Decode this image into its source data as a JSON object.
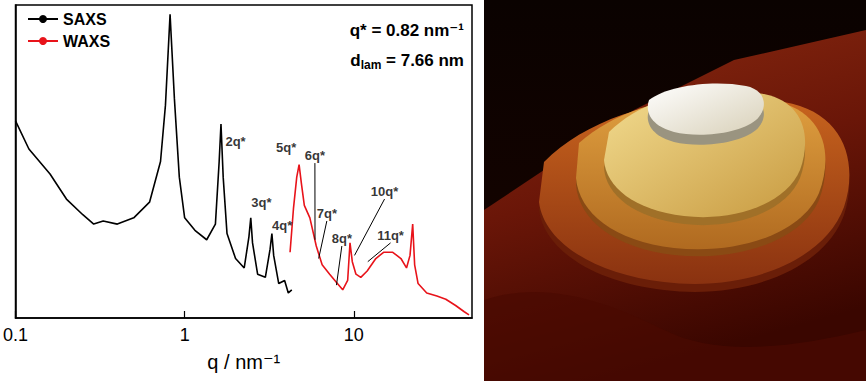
{
  "chart_data": {
    "type": "line",
    "x_label": "q / nm⁻¹",
    "log": "x",
    "xlim": [
      0.1,
      50
    ],
    "xticks": [
      0.1,
      1,
      10
    ],
    "ylim": [
      0,
      100
    ],
    "tick_labels": "x",
    "grid": false,
    "legend": "upper left",
    "series": [
      {
        "name": "SAXS",
        "color": "#000000",
        "x": [
          0.1,
          0.12,
          0.16,
          0.2,
          0.25,
          0.29,
          0.33,
          0.4,
          0.5,
          0.62,
          0.72,
          0.77,
          0.82,
          0.87,
          0.93,
          1.0,
          1.15,
          1.35,
          1.52,
          1.6,
          1.64,
          1.69,
          1.78,
          2.0,
          2.25,
          2.4,
          2.46,
          2.52,
          2.7,
          3.0,
          3.2,
          3.28,
          3.36,
          3.6,
          3.9,
          4.1,
          4.3
        ],
        "values": [
          63,
          54,
          46,
          38,
          33,
          30,
          31,
          30,
          32,
          37,
          50,
          68,
          97,
          70,
          45,
          32,
          28,
          25,
          30,
          50,
          62,
          45,
          27,
          19,
          16,
          26,
          32,
          24,
          14,
          13,
          22,
          27,
          20,
          11,
          12,
          8,
          9
        ]
      },
      {
        "name": "WAXS",
        "color": "#e8131a",
        "x": [
          4.2,
          4.4,
          4.6,
          4.75,
          4.9,
          5.1,
          5.5,
          6.0,
          6.5,
          7.2,
          8.0,
          8.6,
          9.2,
          9.5,
          9.8,
          10.3,
          11,
          12,
          13.5,
          15,
          17,
          19,
          20.5,
          21.5,
          22.3,
          22.9,
          24,
          27,
          31,
          35,
          40,
          45,
          48
        ],
        "values": [
          21,
          35,
          45,
          49,
          43,
          36,
          32,
          23,
          17,
          14,
          11,
          9,
          12,
          24,
          18,
          14,
          13,
          15,
          19,
          21,
          21,
          19,
          16,
          20,
          30,
          17,
          11,
          8,
          7,
          6,
          4,
          2,
          1
        ]
      }
    ],
    "annotations": [
      {
        "text": "2q*",
        "x": 2.0,
        "y": 54
      },
      {
        "text": "3q*",
        "x": 2.84,
        "y": 34.5
      },
      {
        "text": "4q*",
        "x": 3.77,
        "y": 27
      },
      {
        "text": "5q*",
        "x": 3.98,
        "y": 52
      },
      {
        "text": "6q*",
        "x": 5.89,
        "y": 49.5,
        "line_to": [
          5.9,
          25
        ]
      },
      {
        "text": "7q*",
        "x": 6.93,
        "y": 31,
        "line_to": [
          6.2,
          19
        ]
      },
      {
        "text": "8q*",
        "x": 8.5,
        "y": 23,
        "line_to": [
          7.9,
          10.5
        ]
      },
      {
        "text": "10q*",
        "x": 15.2,
        "y": 38,
        "line_to": [
          10.1,
          20
        ]
      },
      {
        "text": "11q*",
        "x": 16.5,
        "y": 24,
        "line_to": [
          12.1,
          18
        ]
      }
    ],
    "info": [
      {
        "parts": [
          {
            "text": "q* = 0.82 nm⁻¹"
          }
        ]
      },
      {
        "parts": [
          {
            "text": "d"
          },
          {
            "text": "lam",
            "sub": true
          },
          {
            "text": " = 7.66 nm"
          }
        ]
      }
    ]
  }
}
